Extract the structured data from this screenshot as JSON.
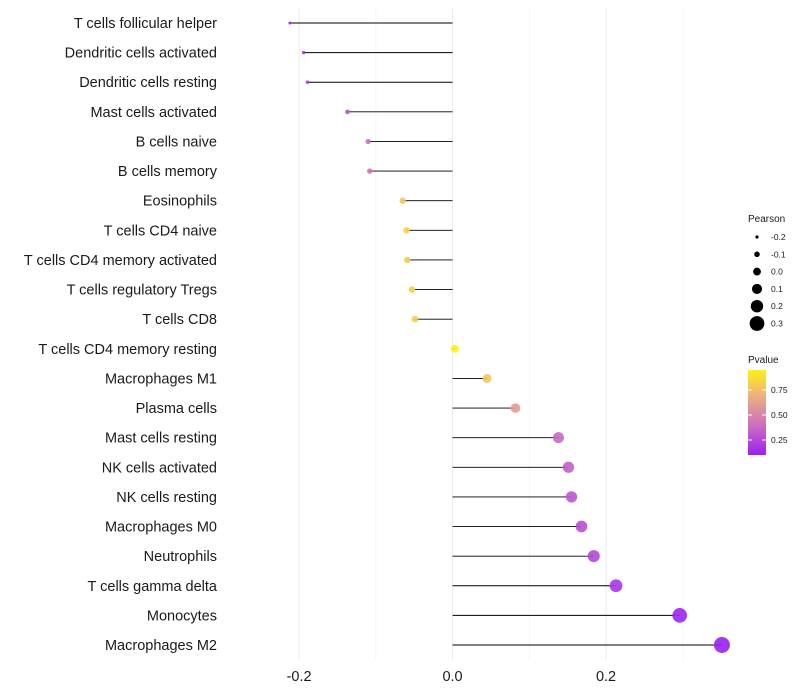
{
  "chart_data": {
    "type": "lollipop",
    "title": "",
    "xlabel": "",
    "ylabel": "",
    "xlim": [
      -0.29,
      0.355
    ],
    "xticks": [
      -0.2,
      0.0,
      0.2
    ],
    "xtick_labels": [
      "-0.2",
      "0.0",
      "0.2"
    ],
    "grid": true,
    "legend_position": "right",
    "size_legend": {
      "title": "Pearson",
      "values": [
        -0.2,
        -0.1,
        0.0,
        0.1,
        0.2,
        0.3
      ],
      "labels": [
        "-0.2",
        "-0.1",
        "0.0",
        "0.1",
        "0.2",
        "0.3"
      ]
    },
    "color_legend": {
      "title": "Pvalue",
      "range": [
        0.1,
        0.95
      ],
      "ticks": [
        0.25,
        0.5,
        0.75
      ],
      "tick_labels": [
        "0.25",
        "0.50",
        "0.75"
      ],
      "colors": [
        "#9b1ff2",
        "#cc6fc0",
        "#eeb07e",
        "#fcf214"
      ]
    },
    "categories": [
      "T cells follicular helper",
      "Dendritic cells activated",
      "Dendritic cells resting",
      "Mast cells activated",
      "B cells naive",
      "B cells memory",
      "Eosinophils",
      "T cells CD4 naive",
      "T cells CD4 memory activated",
      "T cells regulatory  Tregs ",
      "T cells CD8",
      "T cells CD4 memory resting",
      "Macrophages M1",
      "Plasma cells",
      "Mast cells resting",
      "NK cells activated",
      "NK cells resting",
      "Macrophages M0",
      "Neutrophils",
      "T cells gamma delta",
      "Monocytes",
      "Macrophages M2"
    ],
    "values": [
      -0.212,
      -0.194,
      -0.189,
      -0.137,
      -0.11,
      -0.108,
      -0.065,
      -0.06,
      -0.059,
      -0.053,
      -0.049,
      0.003,
      0.045,
      0.082,
      0.138,
      0.151,
      0.155,
      0.168,
      0.184,
      0.213,
      0.296,
      0.351
    ],
    "pvalues": [
      0.12,
      0.15,
      0.17,
      0.3,
      0.38,
      0.4,
      0.76,
      0.8,
      0.79,
      0.81,
      0.79,
      0.98,
      0.77,
      0.58,
      0.36,
      0.33,
      0.3,
      0.27,
      0.24,
      0.18,
      0.12,
      0.1
    ]
  }
}
